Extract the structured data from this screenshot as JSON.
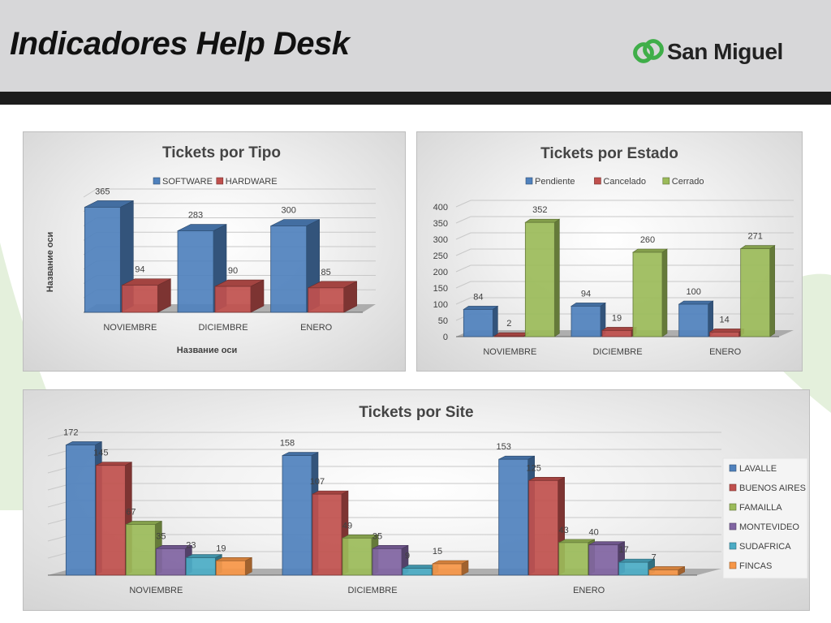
{
  "page": {
    "title": "Indicadores Help Desk"
  },
  "logo": {
    "text": "San Miguel",
    "color": "#3fae49"
  },
  "colors": {
    "blue": "#4f81bd",
    "red": "#c0504d",
    "green": "#9bbb59",
    "purple": "#8064a2",
    "teal": "#4bacc6",
    "orange": "#f79646"
  },
  "chart_data": [
    {
      "type": "bar",
      "title": "Tickets por Tipo",
      "xlabel": "Название оси",
      "ylabel": "Название оси",
      "legend": "top",
      "grid": true,
      "categories": [
        "NOVIEMBRE",
        "DICIEMBRE",
        "ENERO"
      ],
      "series": [
        {
          "name": "SOFTWARE",
          "color": "#4f81bd",
          "values": [
            365,
            283,
            300
          ]
        },
        {
          "name": "HARDWARE",
          "color": "#c0504d",
          "values": [
            94,
            90,
            85
          ]
        }
      ],
      "ylim": [
        0,
        400
      ]
    },
    {
      "type": "bar",
      "title": "Tickets por Estado",
      "legend": "top",
      "grid": true,
      "categories": [
        "NOVIEMBRE",
        "DICIEMBRE",
        "ENERO"
      ],
      "series": [
        {
          "name": "Pendiente",
          "color": "#4f81bd",
          "values": [
            84,
            94,
            100
          ]
        },
        {
          "name": "Cancelado",
          "color": "#c0504d",
          "values": [
            2,
            19,
            14
          ]
        },
        {
          "name": "Cerrado",
          "color": "#9bbb59",
          "values": [
            352,
            260,
            271
          ]
        }
      ],
      "ylim": [
        0,
        400
      ],
      "yticks": [
        0,
        50,
        100,
        150,
        200,
        250,
        300,
        350,
        400
      ]
    },
    {
      "type": "bar",
      "title": "Tickets por Site",
      "legend": "right",
      "grid": true,
      "categories": [
        "NOVIEMBRE",
        "DICIEMBRE",
        "ENERO"
      ],
      "series": [
        {
          "name": "LAVALLE",
          "color": "#4f81bd",
          "values": [
            172,
            158,
            153
          ]
        },
        {
          "name": "BUENOS AIRES",
          "color": "#c0504d",
          "values": [
            145,
            107,
            125
          ]
        },
        {
          "name": "FAMAILLA",
          "color": "#9bbb59",
          "values": [
            67,
            49,
            43
          ]
        },
        {
          "name": "MONTEVIDEO",
          "color": "#8064a2",
          "values": [
            35,
            35,
            40
          ]
        },
        {
          "name": "SUDAFRICA",
          "color": "#4bacc6",
          "values": [
            23,
            9,
            17
          ]
        },
        {
          "name": "FINCAS",
          "color": "#f79646",
          "values": [
            19,
            15,
            7
          ]
        }
      ],
      "ylim": [
        0,
        180
      ]
    }
  ]
}
